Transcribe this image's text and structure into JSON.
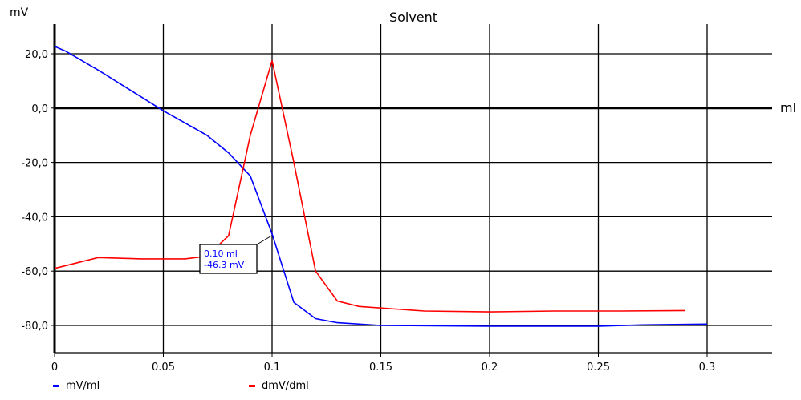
{
  "chart_data": {
    "type": "line",
    "title": "Solvent",
    "ylabel": "mV",
    "xlabel": "ml",
    "xlim": [
      0,
      0.3
    ],
    "ylim": [
      -90,
      30
    ],
    "grid": true,
    "legend_position": "bottom-left",
    "x_ticks": [
      "0",
      "0.05",
      "0.1",
      "0.15",
      "0.2",
      "0.25",
      "0.3"
    ],
    "x_tick_values": [
      0,
      0.05,
      0.1,
      0.15,
      0.2,
      0.25,
      0.3
    ],
    "y_ticks": [
      "20,0",
      "0,0",
      "-20,0",
      "-40,0",
      "-60,0",
      "-80,0"
    ],
    "y_tick_values": [
      20,
      0,
      -20,
      -40,
      -60,
      -80
    ],
    "series": [
      {
        "name": "mV/ml",
        "color": "#0000ff",
        "points": [
          [
            0,
            22.7
          ],
          [
            0.005,
            21
          ],
          [
            0.02,
            14
          ],
          [
            0.04,
            4
          ],
          [
            0.05,
            -1
          ],
          [
            0.07,
            -10
          ],
          [
            0.08,
            -16.5
          ],
          [
            0.09,
            -25
          ],
          [
            0.1,
            -46.3
          ],
          [
            0.11,
            -71.5
          ],
          [
            0.12,
            -77.5
          ],
          [
            0.13,
            -79
          ],
          [
            0.15,
            -80
          ],
          [
            0.2,
            -80.3
          ],
          [
            0.25,
            -80.3
          ],
          [
            0.27,
            -79.8
          ],
          [
            0.3,
            -79.5
          ]
        ]
      },
      {
        "name": "dmV/dml",
        "color": "#ff0000",
        "points": [
          [
            0,
            -59
          ],
          [
            0.02,
            -55
          ],
          [
            0.04,
            -55.5
          ],
          [
            0.06,
            -55.5
          ],
          [
            0.07,
            -54.5
          ],
          [
            0.08,
            -47
          ],
          [
            0.09,
            -10
          ],
          [
            0.1,
            17.5
          ],
          [
            0.11,
            -20
          ],
          [
            0.12,
            -60
          ],
          [
            0.13,
            -71
          ],
          [
            0.14,
            -73
          ],
          [
            0.17,
            -74.7
          ],
          [
            0.2,
            -75
          ],
          [
            0.23,
            -74.7
          ],
          [
            0.26,
            -74.7
          ],
          [
            0.29,
            -74.5
          ]
        ]
      }
    ],
    "tooltip": {
      "x_text": "0.10 ml",
      "y_text": "-46.3 mV",
      "anchor": [
        0.1,
        -46.3
      ]
    }
  }
}
